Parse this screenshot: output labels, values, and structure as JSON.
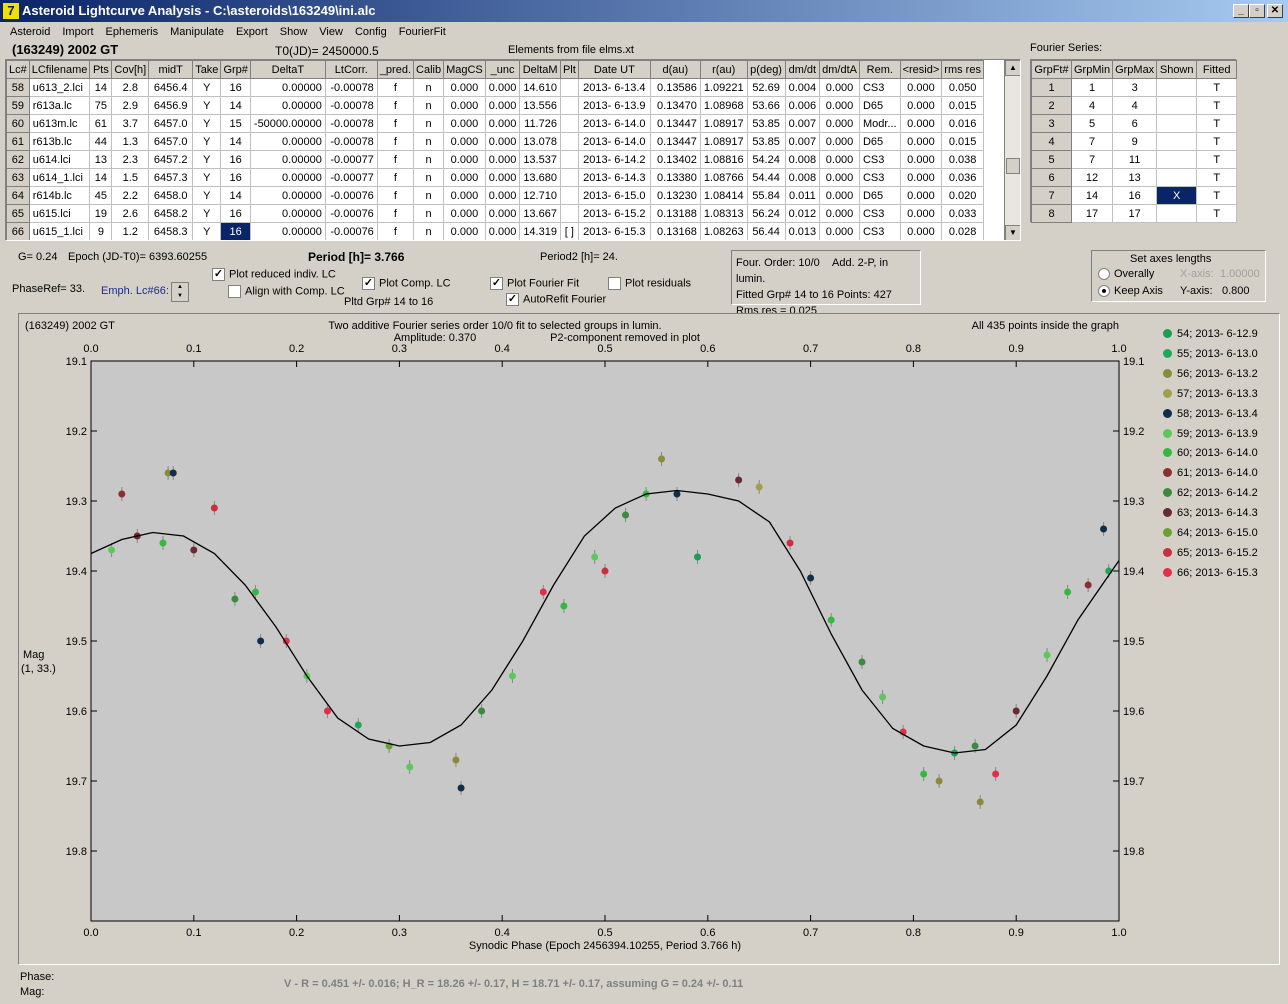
{
  "window": {
    "title": "Asteroid Lightcurve Analysis - C:\\asteroids\\163249\\ini.alc",
    "icon_letter": "7"
  },
  "menu": [
    "Asteroid",
    "Import",
    "Ephemeris",
    "Manipulate",
    "Export",
    "Show",
    "View",
    "Config",
    "FourierFit"
  ],
  "header": {
    "object": "(163249) 2002 GT",
    "t0": "T0(JD)= 2450000.5",
    "elements": "Elements from file elms.xt",
    "fourier_title": "Fourier Series:"
  },
  "lc_table": {
    "columns": [
      "Lc#",
      "LCfilename",
      "Pts",
      "Cov[h]",
      "midT",
      "Take",
      "Grp#",
      "DeltaT",
      "LtCorr.",
      "_pred.",
      "Calib",
      "MagCS",
      "_unc",
      "DeltaM",
      "Plt",
      "Date UT",
      "d(au)",
      "r(au)",
      "p(deg)",
      "dm/dt",
      "dm/dtA",
      "Rem.",
      "<resid>",
      "rms res"
    ],
    "rows": [
      [
        "58",
        "u613_2.lci",
        "14",
        "2.8",
        "6456.4",
        "Y",
        "16",
        "0.00000",
        "-0.00078",
        "f",
        "n",
        "0.000",
        "0.000",
        "14.610",
        "",
        "2013- 6-13.4",
        "0.13586",
        "1.09221",
        "52.69",
        "0.004",
        "0.000",
        "CS3",
        "0.000",
        "0.050"
      ],
      [
        "59",
        "r613a.lc",
        "75",
        "2.9",
        "6456.9",
        "Y",
        "14",
        "0.00000",
        "-0.00078",
        "f",
        "n",
        "0.000",
        "0.000",
        "13.556",
        "",
        "2013- 6-13.9",
        "0.13470",
        "1.08968",
        "53.66",
        "0.006",
        "0.000",
        "D65",
        "0.000",
        "0.015"
      ],
      [
        "60",
        "u613m.lc",
        "61",
        "3.7",
        "6457.0",
        "Y",
        "15",
        "-50000.00000",
        "-0.00078",
        "f",
        "n",
        "0.000",
        "0.000",
        "11.726",
        "",
        "2013- 6-14.0",
        "0.13447",
        "1.08917",
        "53.85",
        "0.007",
        "0.000",
        "Modr...",
        "0.000",
        "0.016"
      ],
      [
        "61",
        "r613b.lc",
        "44",
        "1.3",
        "6457.0",
        "Y",
        "14",
        "0.00000",
        "-0.00078",
        "f",
        "n",
        "0.000",
        "0.000",
        "13.078",
        "",
        "2013- 6-14.0",
        "0.13447",
        "1.08917",
        "53.85",
        "0.007",
        "0.000",
        "D65",
        "0.000",
        "0.015"
      ],
      [
        "62",
        "u614.lci",
        "13",
        "2.3",
        "6457.2",
        "Y",
        "16",
        "0.00000",
        "-0.00077",
        "f",
        "n",
        "0.000",
        "0.000",
        "13.537",
        "",
        "2013- 6-14.2",
        "0.13402",
        "1.08816",
        "54.24",
        "0.008",
        "0.000",
        "CS3",
        "0.000",
        "0.038"
      ],
      [
        "63",
        "u614_1.lci",
        "14",
        "1.5",
        "6457.3",
        "Y",
        "16",
        "0.00000",
        "-0.00077",
        "f",
        "n",
        "0.000",
        "0.000",
        "13.680",
        "",
        "2013- 6-14.3",
        "0.13380",
        "1.08766",
        "54.44",
        "0.008",
        "0.000",
        "CS3",
        "0.000",
        "0.036"
      ],
      [
        "64",
        "r614b.lc",
        "45",
        "2.2",
        "6458.0",
        "Y",
        "14",
        "0.00000",
        "-0.00076",
        "f",
        "n",
        "0.000",
        "0.000",
        "12.710",
        "",
        "2013- 6-15.0",
        "0.13230",
        "1.08414",
        "55.84",
        "0.011",
        "0.000",
        "D65",
        "0.000",
        "0.020"
      ],
      [
        "65",
        "u615.lci",
        "19",
        "2.6",
        "6458.2",
        "Y",
        "16",
        "0.00000",
        "-0.00076",
        "f",
        "n",
        "0.000",
        "0.000",
        "13.667",
        "",
        "2013- 6-15.2",
        "0.13188",
        "1.08313",
        "56.24",
        "0.012",
        "0.000",
        "CS3",
        "0.000",
        "0.033"
      ],
      [
        "66",
        "u615_1.lci",
        "9",
        "1.2",
        "6458.3",
        "Y",
        "16",
        "0.00000",
        "-0.00076",
        "f",
        "n",
        "0.000",
        "0.000",
        "14.319",
        "[ ]",
        "2013- 6-15.3",
        "0.13168",
        "1.08263",
        "56.44",
        "0.013",
        "0.000",
        "CS3",
        "0.000",
        "0.028"
      ]
    ]
  },
  "fourier_table": {
    "columns": [
      "GrpFt#",
      "GrpMin",
      "GrpMax",
      "Shown",
      "Fitted"
    ],
    "rows": [
      [
        "1",
        "1",
        "3",
        "",
        "T"
      ],
      [
        "2",
        "4",
        "4",
        "",
        "T"
      ],
      [
        "3",
        "5",
        "6",
        "",
        "T"
      ],
      [
        "4",
        "7",
        "9",
        "",
        "T"
      ],
      [
        "5",
        "7",
        "11",
        "",
        "T"
      ],
      [
        "6",
        "12",
        "13",
        "",
        "T"
      ],
      [
        "7",
        "14",
        "16",
        "X",
        "T"
      ],
      [
        "8",
        "17",
        "17",
        "",
        "T"
      ]
    ]
  },
  "controls": {
    "g": "G= 0.24",
    "epoch": "Epoch (JD-T0)= 6393.60255",
    "period": "Period [h]= 3.766",
    "period2": "Period2 [h]= 24.",
    "phaseref": "PhaseRef= 33.",
    "emph": "Emph. Lc#66:",
    "plot_reduced": "Plot reduced indiv. LC",
    "align": "Align with Comp. LC",
    "plot_comp": "Plot Comp. LC",
    "pltd_grp": "Pltd Grp#  14 to   16",
    "plot_fourier": "Plot Fourier Fit",
    "autorefit": "AutoRefit Fourier",
    "plot_residuals": "Plot residuals",
    "four_order": "Four. Order: 10/0",
    "add2p": "Add. 2-P, in lumin.",
    "fitted": "Fitted Grp# 14 to 16 Points: 427",
    "rms": "Rms res     = 0.025",
    "axes_title": "Set axes lengths",
    "overally": "Overally",
    "keep_axis": "Keep Axis",
    "xaxis_label": "X-axis:",
    "xaxis_val": "1.00000",
    "yaxis_label": "Y-axis:",
    "yaxis_val": "0.800"
  },
  "status": {
    "phase": "Phase:",
    "mag": "Mag:",
    "color_line": "V - R = 0.451 +/- 0.016; H_R = 18.26 +/- 0.17, H = 18.71 +/- 0.17, assuming G = 0.24 +/- 0.11"
  },
  "chart_data": {
    "type": "scatter",
    "corner_label": "(163249) 2002 GT",
    "title": "Two additive Fourier series order 10/0 fit to selected groups in lumin.",
    "amplitude": "Amplitude: 0.370",
    "p2_note": "P2-component removed in plot",
    "points_note": "All 435 points inside the graph",
    "xlabel": "Synodic Phase (Epoch 2456394.10255, Period 3.766 h)",
    "ylabel": "Mag",
    "ylabel2": "(1, 33.)",
    "xlim": [
      0.0,
      1.0
    ],
    "ylim": [
      19.1,
      19.9
    ],
    "xticks": [
      "0.0",
      "0.1",
      "0.2",
      "0.3",
      "0.4",
      "0.5",
      "0.6",
      "0.7",
      "0.8",
      "0.9",
      "1.0"
    ],
    "yticks": [
      "19.1",
      "19.2",
      "19.3",
      "19.4",
      "19.5",
      "19.6",
      "19.7",
      "19.8"
    ],
    "fit_curve": {
      "x": [
        0.0,
        0.03,
        0.06,
        0.09,
        0.12,
        0.15,
        0.18,
        0.21,
        0.24,
        0.27,
        0.3,
        0.33,
        0.36,
        0.39,
        0.42,
        0.45,
        0.48,
        0.51,
        0.54,
        0.57,
        0.6,
        0.63,
        0.66,
        0.69,
        0.72,
        0.75,
        0.78,
        0.81,
        0.84,
        0.87,
        0.9,
        0.93,
        0.96,
        1.0
      ],
      "y": [
        19.375,
        19.355,
        19.345,
        19.35,
        19.375,
        19.42,
        19.48,
        19.55,
        19.61,
        19.64,
        19.65,
        19.645,
        19.62,
        19.57,
        19.5,
        19.42,
        19.35,
        19.31,
        19.29,
        19.285,
        19.29,
        19.3,
        19.33,
        19.4,
        19.49,
        19.57,
        19.625,
        19.65,
        19.66,
        19.655,
        19.62,
        19.55,
        19.47,
        19.385
      ]
    },
    "series": [
      {
        "name": "54; 2013- 6-12.9",
        "color": "#1a9e50"
      },
      {
        "name": "55; 2013- 6-13.0",
        "color": "#20a858"
      },
      {
        "name": "56; 2013- 6-13.2",
        "color": "#8a8a3c"
      },
      {
        "name": "57; 2013- 6-13.3",
        "color": "#a0a04c"
      },
      {
        "name": "58; 2013- 6-13.4",
        "color": "#0f2e4a"
      },
      {
        "name": "59; 2013- 6-13.9",
        "color": "#5cc85a"
      },
      {
        "name": "60; 2013- 6-14.0",
        "color": "#34b840"
      },
      {
        "name": "61; 2013- 6-14.0",
        "color": "#8a3030"
      },
      {
        "name": "62; 2013- 6-14.2",
        "color": "#3c8a3c"
      },
      {
        "name": "63; 2013- 6-14.3",
        "color": "#6a2a34"
      },
      {
        "name": "64; 2013- 6-15.0",
        "color": "#6aa032"
      },
      {
        "name": "65; 2013- 6-15.2",
        "color": "#c8303c"
      },
      {
        "name": "66; 2013- 6-15.3",
        "color": "#e03048"
      }
    ],
    "sample_points": [
      {
        "x": 0.02,
        "y": 19.37,
        "s": 5
      },
      {
        "x": 0.045,
        "y": 19.35,
        "s": 9
      },
      {
        "x": 0.07,
        "y": 19.36,
        "s": 6
      },
      {
        "x": 0.075,
        "y": 19.26,
        "s": 2
      },
      {
        "x": 0.08,
        "y": 19.26,
        "s": 4
      },
      {
        "x": 0.03,
        "y": 19.29,
        "s": 7
      },
      {
        "x": 0.1,
        "y": 19.37,
        "s": 9
      },
      {
        "x": 0.12,
        "y": 19.31,
        "s": 11
      },
      {
        "x": 0.14,
        "y": 19.44,
        "s": 8
      },
      {
        "x": 0.16,
        "y": 19.43,
        "s": 6
      },
      {
        "x": 0.165,
        "y": 19.5,
        "s": 4
      },
      {
        "x": 0.19,
        "y": 19.5,
        "s": 12
      },
      {
        "x": 0.21,
        "y": 19.55,
        "s": 5
      },
      {
        "x": 0.23,
        "y": 19.6,
        "s": 12
      },
      {
        "x": 0.26,
        "y": 19.62,
        "s": 1
      },
      {
        "x": 0.29,
        "y": 19.65,
        "s": 10
      },
      {
        "x": 0.31,
        "y": 19.68,
        "s": 5
      },
      {
        "x": 0.355,
        "y": 19.67,
        "s": 2
      },
      {
        "x": 0.36,
        "y": 19.71,
        "s": 4
      },
      {
        "x": 0.38,
        "y": 19.6,
        "s": 8
      },
      {
        "x": 0.41,
        "y": 19.55,
        "s": 5
      },
      {
        "x": 0.44,
        "y": 19.43,
        "s": 12
      },
      {
        "x": 0.46,
        "y": 19.45,
        "s": 6
      },
      {
        "x": 0.49,
        "y": 19.38,
        "s": 5
      },
      {
        "x": 0.5,
        "y": 19.4,
        "s": 11
      },
      {
        "x": 0.52,
        "y": 19.32,
        "s": 8
      },
      {
        "x": 0.54,
        "y": 19.29,
        "s": 6
      },
      {
        "x": 0.555,
        "y": 19.24,
        "s": 2
      },
      {
        "x": 0.57,
        "y": 19.29,
        "s": 4
      },
      {
        "x": 0.59,
        "y": 19.38,
        "s": 0
      },
      {
        "x": 0.63,
        "y": 19.27,
        "s": 9
      },
      {
        "x": 0.65,
        "y": 19.28,
        "s": 3
      },
      {
        "x": 0.68,
        "y": 19.36,
        "s": 11
      },
      {
        "x": 0.7,
        "y": 19.41,
        "s": 4
      },
      {
        "x": 0.72,
        "y": 19.47,
        "s": 6
      },
      {
        "x": 0.75,
        "y": 19.53,
        "s": 8
      },
      {
        "x": 0.77,
        "y": 19.58,
        "s": 5
      },
      {
        "x": 0.79,
        "y": 19.63,
        "s": 12
      },
      {
        "x": 0.81,
        "y": 19.69,
        "s": 6
      },
      {
        "x": 0.825,
        "y": 19.7,
        "s": 2
      },
      {
        "x": 0.84,
        "y": 19.66,
        "s": 0
      },
      {
        "x": 0.86,
        "y": 19.65,
        "s": 8
      },
      {
        "x": 0.865,
        "y": 19.73,
        "s": 2
      },
      {
        "x": 0.88,
        "y": 19.69,
        "s": 12
      },
      {
        "x": 0.9,
        "y": 19.6,
        "s": 9
      },
      {
        "x": 0.93,
        "y": 19.52,
        "s": 5
      },
      {
        "x": 0.95,
        "y": 19.43,
        "s": 6
      },
      {
        "x": 0.97,
        "y": 19.42,
        "s": 7
      },
      {
        "x": 0.985,
        "y": 19.34,
        "s": 4
      },
      {
        "x": 0.99,
        "y": 19.4,
        "s": 1
      }
    ]
  }
}
